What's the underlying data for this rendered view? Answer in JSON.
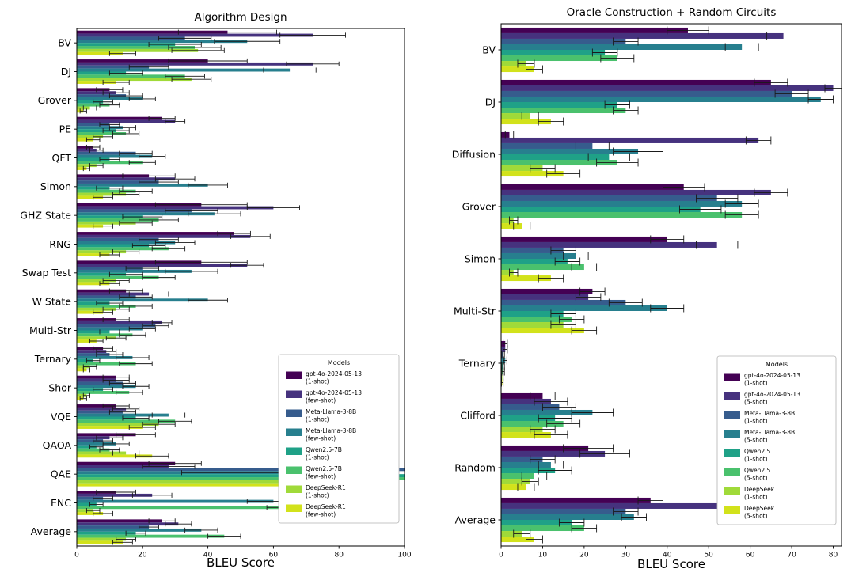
{
  "chart_data": [
    {
      "type": "bar",
      "orientation": "horizontal",
      "title": "Algorithm Design",
      "xlabel": "BLEU Score",
      "xlim": [
        0,
        100
      ],
      "xticks": [
        0,
        20,
        40,
        60,
        80,
        100
      ],
      "legend_title": "Models",
      "legend_position": "lower right inside",
      "grid": false,
      "categories": [
        "BV",
        "DJ",
        "Grover",
        "PE",
        "QFT",
        "Simon",
        "GHZ State",
        "RNG",
        "Swap Test",
        "W State",
        "Multi-Str",
        "Ternary",
        "Shor",
        "VQE",
        "QAOA",
        "QAE",
        "ENC",
        "Average"
      ],
      "series": [
        {
          "label": "gpt-4o-2024-05-13",
          "shot": "(1-shot)",
          "color": "#440154",
          "values": [
            46,
            40,
            10,
            26,
            5,
            22,
            38,
            48,
            38,
            15,
            12,
            8,
            12,
            12,
            18,
            30,
            12,
            26
          ],
          "errors": [
            15,
            12,
            4,
            4,
            2,
            8,
            14,
            5,
            14,
            5,
            4,
            3,
            4,
            4,
            6,
            8,
            6,
            4
          ]
        },
        {
          "label": "gpt-4o-2024-05-13",
          "shot": "(few-shot)",
          "color": "#46327e",
          "values": [
            72,
            72,
            12,
            30,
            6,
            30,
            60,
            53,
            52,
            22,
            26,
            9,
            12,
            15,
            10,
            28,
            23,
            31
          ],
          "errors": [
            10,
            8,
            4,
            3,
            2,
            6,
            8,
            6,
            5,
            6,
            3,
            3,
            4,
            4,
            4,
            8,
            6,
            4
          ]
        },
        {
          "label": "Meta-Llama-3-8B",
          "shot": "(1-shot)",
          "color": "#365c8d",
          "values": [
            33,
            22,
            15,
            10,
            18,
            25,
            35,
            25,
            20,
            18,
            24,
            10,
            14,
            14,
            8,
            100,
            8,
            22
          ],
          "errors": [
            8,
            6,
            5,
            3,
            5,
            6,
            8,
            6,
            5,
            5,
            4,
            4,
            4,
            4,
            3,
            0,
            3,
            3
          ]
        },
        {
          "label": "Meta-Llama-3-8B",
          "shot": "(few-shot)",
          "color": "#277f8e",
          "values": [
            52,
            65,
            20,
            14,
            23,
            40,
            42,
            30,
            35,
            40,
            20,
            17,
            18,
            28,
            12,
            62,
            60,
            38
          ],
          "errors": [
            10,
            8,
            4,
            4,
            4,
            6,
            8,
            6,
            8,
            6,
            4,
            5,
            4,
            5,
            4,
            30,
            8,
            5
          ]
        },
        {
          "label": "Qwen2.5-7B",
          "shot": "(1-shot)",
          "color": "#1fa187",
          "values": [
            30,
            15,
            8,
            12,
            10,
            10,
            20,
            22,
            15,
            10,
            10,
            5,
            8,
            18,
            6,
            100,
            6,
            18
          ],
          "errors": [
            8,
            5,
            3,
            4,
            3,
            4,
            6,
            5,
            5,
            4,
            3,
            2,
            3,
            4,
            2,
            0,
            2,
            3
          ]
        },
        {
          "label": "Qwen2.5-7B",
          "shot": "(few-shot)",
          "color": "#4ac16d",
          "values": [
            36,
            33,
            10,
            15,
            20,
            18,
            25,
            28,
            25,
            18,
            17,
            18,
            16,
            30,
            10,
            100,
            66,
            45
          ],
          "errors": [
            8,
            6,
            3,
            4,
            4,
            5,
            6,
            5,
            5,
            5,
            4,
            5,
            4,
            5,
            3,
            0,
            8,
            5
          ]
        },
        {
          "label": "DeepSeek-R1",
          "shot": "(1-shot)",
          "color": "#a0da39",
          "values": [
            37,
            35,
            4,
            8,
            6,
            15,
            18,
            15,
            12,
            12,
            12,
            4,
            3,
            25,
            15,
            88,
            5,
            15
          ],
          "errors": [
            8,
            6,
            2,
            3,
            2,
            4,
            5,
            4,
            4,
            4,
            3,
            2,
            1,
            5,
            4,
            10,
            2,
            3
          ]
        },
        {
          "label": "DeepSeek-R1",
          "shot": "(few-shot)",
          "color": "#d2e21b",
          "values": [
            14,
            12,
            2,
            5,
            3,
            8,
            8,
            10,
            10,
            8,
            6,
            3,
            2,
            20,
            23,
            88,
            8,
            14
          ],
          "errors": [
            4,
            4,
            1,
            2,
            1,
            3,
            3,
            3,
            3,
            3,
            2,
            1,
            1,
            4,
            5,
            10,
            3,
            3
          ]
        }
      ]
    },
    {
      "type": "bar",
      "orientation": "horizontal",
      "title": "Oracle Construction + Random Circuits",
      "xlabel": "BLEU Score",
      "xlim": [
        0,
        82
      ],
      "xticks": [
        0,
        10,
        20,
        30,
        40,
        50,
        60,
        70,
        80
      ],
      "legend_title": "Models",
      "legend_position": "lower right inside",
      "grid": false,
      "categories": [
        "BV",
        "DJ",
        "Diffusion",
        "Grover",
        "Simon",
        "Multi-Str",
        "Ternary",
        "Clifford",
        "Random",
        "Average"
      ],
      "series": [
        {
          "label": "gpt-4o-2024-05-13",
          "shot": "(1-shot)",
          "color": "#440154",
          "values": [
            45,
            65,
            2,
            44,
            40,
            22,
            1,
            10,
            21,
            36
          ],
          "errors": [
            5,
            4,
            1,
            5,
            4,
            3,
            0.5,
            3,
            6,
            3
          ]
        },
        {
          "label": "gpt-4o-2024-05-13",
          "shot": "(5-shot)",
          "color": "#46327e",
          "values": [
            68,
            80,
            62,
            65,
            52,
            21,
            1,
            12,
            25,
            58
          ],
          "errors": [
            4,
            2,
            3,
            4,
            5,
            3,
            0.5,
            4,
            6,
            4
          ]
        },
        {
          "label": "Meta-Llama-3-8B",
          "shot": "(1-shot)",
          "color": "#365c8d",
          "values": [
            30,
            70,
            22,
            52,
            15,
            30,
            0.5,
            14,
            10,
            30
          ],
          "errors": [
            3,
            4,
            4,
            5,
            3,
            4,
            0.3,
            4,
            3,
            3
          ]
        },
        {
          "label": "Meta-Llama-3-8B",
          "shot": "(5-shot)",
          "color": "#277f8e",
          "values": [
            58,
            77,
            33,
            58,
            18,
            40,
            1,
            22,
            12,
            32
          ],
          "errors": [
            4,
            3,
            6,
            4,
            3,
            4,
            0.4,
            5,
            3,
            3
          ]
        },
        {
          "label": "Qwen2.5",
          "shot": "(1-shot)",
          "color": "#1fa187",
          "values": [
            25,
            28,
            26,
            48,
            16,
            15,
            0.5,
            13,
            13,
            17
          ],
          "errors": [
            3,
            3,
            5,
            5,
            3,
            3,
            0.3,
            4,
            4,
            3
          ]
        },
        {
          "label": "Qwen2.5",
          "shot": "(5-shot)",
          "color": "#4ac16d",
          "values": [
            28,
            30,
            28,
            58,
            20,
            17,
            0.5,
            15,
            8,
            20
          ],
          "errors": [
            4,
            3,
            5,
            4,
            3,
            3,
            0.3,
            4,
            3,
            3
          ]
        },
        {
          "label": "DeepSeek",
          "shot": "(1-shot)",
          "color": "#a0da39",
          "values": [
            6,
            7,
            10,
            3,
            3,
            15,
            0.3,
            10,
            7,
            5
          ],
          "errors": [
            2,
            2,
            3,
            1,
            1,
            3,
            0.2,
            3,
            2,
            2
          ]
        },
        {
          "label": "DeepSeek",
          "shot": "(5-shot)",
          "color": "#d2e21b",
          "values": [
            8,
            12,
            15,
            5,
            12,
            20,
            0.3,
            12,
            6,
            8
          ],
          "errors": [
            2,
            3,
            4,
            2,
            3,
            3,
            0.2,
            4,
            2,
            2
          ]
        }
      ]
    }
  ]
}
